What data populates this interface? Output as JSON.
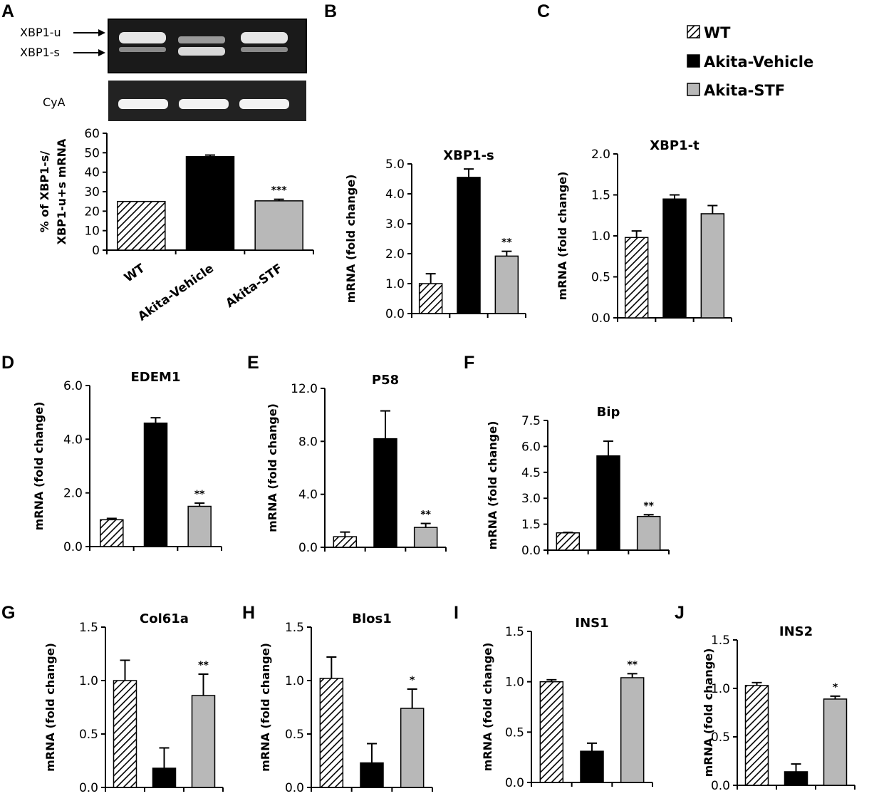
{
  "colors": {
    "wt_stroke": "#000000",
    "vehicle": "#000000",
    "stf": "#b8b8b8",
    "gel_bg": "#1a1a1a",
    "gel_band": "#e6e6e6"
  },
  "legend": {
    "items": [
      {
        "label": "WT",
        "style": "hatch"
      },
      {
        "label": "Akita-Vehicle",
        "style": "black"
      },
      {
        "label": "Akita-STF",
        "style": "grey"
      }
    ]
  },
  "gel": {
    "band_labels": [
      "XBP1-u",
      "XBP1-s"
    ],
    "loading_label": "CyA"
  },
  "chart_data": [
    {
      "id": "A",
      "letter": "A",
      "type": "bar",
      "title": "",
      "ylabel_lines": [
        "% of XBP1-s/",
        "XBP1-u+s  mRNA"
      ],
      "categories": [
        "WT",
        "Akita-Vehicle",
        "Akita-STF"
      ],
      "values": [
        25,
        48,
        25.3
      ],
      "errors": [
        0,
        0.8,
        0.8
      ],
      "sig": [
        "",
        "",
        "***"
      ],
      "ylim": [
        0,
        60
      ],
      "yticks": [
        "0",
        "10",
        "20",
        "30",
        "40",
        "50",
        "60"
      ]
    },
    {
      "id": "B",
      "letter": "B",
      "type": "bar",
      "title": "XBP1-s",
      "ylabel_lines": [
        "mRNA (fold change)"
      ],
      "categories": [
        "WT",
        "Akita-Vehicle",
        "Akita-STF"
      ],
      "values": [
        1.0,
        4.55,
        1.92
      ],
      "errors": [
        0.33,
        0.28,
        0.16
      ],
      "sig": [
        "",
        "",
        "**"
      ],
      "ylim": [
        0,
        5
      ],
      "yticks": [
        "0.0",
        "1.0",
        "2.0",
        "3.0",
        "4.0",
        "5.0"
      ]
    },
    {
      "id": "C",
      "letter": "C",
      "type": "bar",
      "title": "XBP1-t",
      "ylabel_lines": [
        "mRNA (fold change)"
      ],
      "categories": [
        "WT",
        "Akita-Vehicle",
        "Akita-STF"
      ],
      "values": [
        0.98,
        1.45,
        1.27
      ],
      "errors": [
        0.08,
        0.05,
        0.1
      ],
      "sig": [
        "",
        "",
        ""
      ],
      "ylim": [
        0,
        2
      ],
      "yticks": [
        "0.0",
        "0.5",
        "1.0",
        "1.5",
        "2.0"
      ]
    },
    {
      "id": "D",
      "letter": "D",
      "type": "bar",
      "title": "EDEM1",
      "ylabel_lines": [
        "mRNA (fold change)"
      ],
      "categories": [
        "WT",
        "Akita-Vehicle",
        "Akita-STF"
      ],
      "values": [
        1.0,
        4.6,
        1.5
      ],
      "errors": [
        0.05,
        0.2,
        0.12
      ],
      "sig": [
        "",
        "",
        "**"
      ],
      "ylim": [
        0,
        6
      ],
      "yticks": [
        "0.0",
        "2.0",
        "4.0",
        "6.0"
      ]
    },
    {
      "id": "E",
      "letter": "E",
      "type": "bar",
      "title": "P58",
      "ylabel_lines": [
        "mRNA (fold change)"
      ],
      "categories": [
        "WT",
        "Akita-Vehicle",
        "Akita-STF"
      ],
      "values": [
        0.8,
        8.2,
        1.5
      ],
      "errors": [
        0.35,
        2.1,
        0.3
      ],
      "sig": [
        "",
        "",
        "**"
      ],
      "ylim": [
        0,
        12
      ],
      "yticks": [
        "0.0",
        "4.0",
        "8.0",
        "12.0"
      ]
    },
    {
      "id": "F",
      "letter": "F",
      "type": "bar",
      "title": "Bip",
      "ylabel_lines": [
        "mRNA (fold change)"
      ],
      "categories": [
        "WT",
        "Akita-Vehicle",
        "Akita-STF"
      ],
      "values": [
        1.0,
        5.45,
        1.95
      ],
      "errors": [
        0.03,
        0.85,
        0.1
      ],
      "sig": [
        "",
        "",
        "**"
      ],
      "ylim": [
        0,
        7.5
      ],
      "yticks": [
        "0.0",
        "1.5",
        "3.0",
        "4.5",
        "6.0",
        "7.5"
      ]
    },
    {
      "id": "G",
      "letter": "G",
      "type": "bar",
      "title": "Col61a",
      "ylabel_lines": [
        "mRNA (fold change)"
      ],
      "categories": [
        "WT",
        "Akita-Vehicle",
        "Akita-STF"
      ],
      "values": [
        1.0,
        0.18,
        0.86
      ],
      "errors": [
        0.19,
        0.19,
        0.2
      ],
      "sig": [
        "",
        "",
        "**"
      ],
      "ylim": [
        0,
        1.5
      ],
      "yticks": [
        "0.0",
        "0.5",
        "1.0",
        "1.5"
      ]
    },
    {
      "id": "H",
      "letter": "H",
      "type": "bar",
      "title": "Blos1",
      "ylabel_lines": [
        "mRNA (fold change)"
      ],
      "categories": [
        "WT",
        "Akita-Vehicle",
        "Akita-STF"
      ],
      "values": [
        1.02,
        0.23,
        0.74
      ],
      "errors": [
        0.2,
        0.18,
        0.18
      ],
      "sig": [
        "",
        "",
        "*"
      ],
      "ylim": [
        0,
        1.5
      ],
      "yticks": [
        "0.0",
        "0.5",
        "1.0",
        "1.5"
      ]
    },
    {
      "id": "I",
      "letter": "I",
      "type": "bar",
      "title": "INS1",
      "ylabel_lines": [
        "mRNA (fold change)"
      ],
      "categories": [
        "WT",
        "Akita-Vehicle",
        "Akita-STF"
      ],
      "values": [
        1.0,
        0.31,
        1.04
      ],
      "errors": [
        0.02,
        0.08,
        0.04
      ],
      "sig": [
        "",
        "",
        "**"
      ],
      "ylim": [
        0,
        1.5
      ],
      "yticks": [
        "0.0",
        "0.5",
        "1.0",
        "1.5"
      ]
    },
    {
      "id": "J",
      "letter": "J",
      "type": "bar",
      "title": "INS2",
      "ylabel_lines": [
        "mRNA (fold change)"
      ],
      "categories": [
        "WT",
        "Akita-Vehicle",
        "Akita-STF"
      ],
      "values": [
        1.03,
        0.14,
        0.89
      ],
      "errors": [
        0.03,
        0.08,
        0.03
      ],
      "sig": [
        "",
        "",
        "*"
      ],
      "ylim": [
        0,
        1.5
      ],
      "yticks": [
        "0.0",
        "0.5",
        "1.0",
        "1.5"
      ]
    }
  ]
}
